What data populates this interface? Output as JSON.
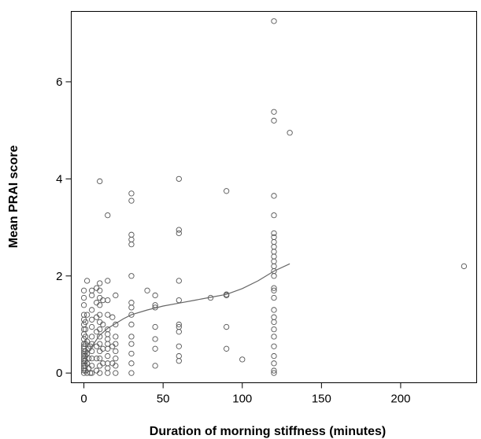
{
  "chart_data": {
    "type": "scatter",
    "title": "",
    "xlabel": "Duration of morning stiffness (minutes)",
    "ylabel": "Mean PRAI score",
    "xlim": [
      -8,
      248
    ],
    "ylim": [
      -0.2,
      7.45
    ],
    "x_ticks": [
      {
        "value": 0,
        "label": "0"
      },
      {
        "value": 50,
        "label": "50"
      },
      {
        "value": 100,
        "label": "100"
      },
      {
        "value": 150,
        "label": "150"
      },
      {
        "value": 200,
        "label": "200"
      }
    ],
    "y_ticks": [
      {
        "value": 0,
        "label": "0"
      },
      {
        "value": 2,
        "label": "2"
      },
      {
        "value": 4,
        "label": "4"
      },
      {
        "value": 6,
        "label": "6"
      }
    ],
    "grid": false,
    "legend": "none",
    "point_color": "#555555",
    "line_color": "#666666",
    "points": [
      [
        0,
        0
      ],
      [
        0,
        0.05
      ],
      [
        0,
        0.1
      ],
      [
        0,
        0.15
      ],
      [
        0,
        0.2
      ],
      [
        0,
        0.25
      ],
      [
        0,
        0.3
      ],
      [
        0,
        0.35
      ],
      [
        0,
        0.4
      ],
      [
        0,
        0.45
      ],
      [
        0,
        0.5
      ],
      [
        0,
        0.55
      ],
      [
        0,
        0.6
      ],
      [
        0,
        0.7
      ],
      [
        0,
        0.8
      ],
      [
        0,
        0.9
      ],
      [
        0,
        1.0
      ],
      [
        0,
        1.1
      ],
      [
        0,
        1.2
      ],
      [
        0,
        1.4
      ],
      [
        0,
        1.55
      ],
      [
        0,
        1.7
      ],
      [
        1,
        0.05
      ],
      [
        1,
        0.15
      ],
      [
        1,
        0.25
      ],
      [
        1,
        0.35
      ],
      [
        1,
        0.45
      ],
      [
        1,
        0.6
      ],
      [
        1,
        0.75
      ],
      [
        1,
        0.9
      ],
      [
        1,
        1.05
      ],
      [
        2,
        0
      ],
      [
        2,
        0.2
      ],
      [
        2,
        0.4
      ],
      [
        2,
        0.65
      ],
      [
        2,
        1.2
      ],
      [
        2,
        1.9
      ],
      [
        3,
        0.1
      ],
      [
        3,
        0.3
      ],
      [
        3,
        0.5
      ],
      [
        4,
        0
      ],
      [
        4,
        0.55
      ],
      [
        5,
        0
      ],
      [
        5,
        0.15
      ],
      [
        5,
        0.3
      ],
      [
        5,
        0.45
      ],
      [
        5,
        0.6
      ],
      [
        5,
        0.75
      ],
      [
        5,
        0.95
      ],
      [
        5,
        1.1
      ],
      [
        5,
        1.3
      ],
      [
        5,
        1.6
      ],
      [
        5,
        1.7
      ],
      [
        8,
        0.05
      ],
      [
        8,
        0.3
      ],
      [
        8,
        0.55
      ],
      [
        8,
        0.85
      ],
      [
        8,
        1.15
      ],
      [
        8,
        1.45
      ],
      [
        8,
        1.75
      ],
      [
        10,
        0
      ],
      [
        10,
        0.15
      ],
      [
        10,
        0.3
      ],
      [
        10,
        0.45
      ],
      [
        10,
        0.6
      ],
      [
        10,
        0.75
      ],
      [
        10,
        0.9
      ],
      [
        10,
        1.05
      ],
      [
        10,
        1.2
      ],
      [
        10,
        1.4
      ],
      [
        10,
        1.55
      ],
      [
        10,
        1.7
      ],
      [
        10,
        1.85
      ],
      [
        10,
        3.95
      ],
      [
        12,
        0.2
      ],
      [
        12,
        0.5
      ],
      [
        12,
        1.0
      ],
      [
        12,
        1.5
      ],
      [
        15,
        0
      ],
      [
        15,
        0.1
      ],
      [
        15,
        0.2
      ],
      [
        15,
        0.35
      ],
      [
        15,
        0.5
      ],
      [
        15,
        0.6
      ],
      [
        15,
        0.7
      ],
      [
        15,
        0.8
      ],
      [
        15,
        0.9
      ],
      [
        15,
        1.2
      ],
      [
        15,
        1.5
      ],
      [
        15,
        1.9
      ],
      [
        15,
        3.25
      ],
      [
        18,
        0.2
      ],
      [
        18,
        0.55
      ],
      [
        18,
        1.15
      ],
      [
        20,
        0
      ],
      [
        20,
        0.15
      ],
      [
        20,
        0.3
      ],
      [
        20,
        0.45
      ],
      [
        20,
        0.6
      ],
      [
        20,
        0.75
      ],
      [
        20,
        1.0
      ],
      [
        20,
        1.6
      ],
      [
        30,
        0
      ],
      [
        30,
        0.2
      ],
      [
        30,
        0.4
      ],
      [
        30,
        0.6
      ],
      [
        30,
        0.75
      ],
      [
        30,
        1.0
      ],
      [
        30,
        1.2
      ],
      [
        30,
        1.35
      ],
      [
        30,
        1.45
      ],
      [
        30,
        2.0
      ],
      [
        30,
        2.65
      ],
      [
        30,
        2.75
      ],
      [
        30,
        2.85
      ],
      [
        30,
        3.55
      ],
      [
        30,
        3.7
      ],
      [
        40,
        1.7
      ],
      [
        45,
        0.15
      ],
      [
        45,
        0.5
      ],
      [
        45,
        0.7
      ],
      [
        45,
        0.95
      ],
      [
        45,
        1.35
      ],
      [
        45,
        1.4
      ],
      [
        45,
        1.6
      ],
      [
        60,
        0.25
      ],
      [
        60,
        0.35
      ],
      [
        60,
        0.55
      ],
      [
        60,
        0.85
      ],
      [
        60,
        0.95
      ],
      [
        60,
        1.0
      ],
      [
        60,
        1.5
      ],
      [
        60,
        1.9
      ],
      [
        60,
        2.88
      ],
      [
        60,
        2.95
      ],
      [
        60,
        4.0
      ],
      [
        80,
        1.55
      ],
      [
        90,
        0.5
      ],
      [
        90,
        0.95
      ],
      [
        90,
        1.6
      ],
      [
        90,
        1.62
      ],
      [
        90,
        3.75
      ],
      [
        100,
        0.28
      ],
      [
        120,
        0
      ],
      [
        120,
        0.05
      ],
      [
        120,
        0.2
      ],
      [
        120,
        0.35
      ],
      [
        120,
        0.55
      ],
      [
        120,
        0.75
      ],
      [
        120,
        0.9
      ],
      [
        120,
        1.05
      ],
      [
        120,
        1.15
      ],
      [
        120,
        1.3
      ],
      [
        120,
        1.55
      ],
      [
        120,
        1.7
      ],
      [
        120,
        1.75
      ],
      [
        120,
        2.0
      ],
      [
        120,
        2.1
      ],
      [
        120,
        2.2
      ],
      [
        120,
        2.3
      ],
      [
        120,
        2.4
      ],
      [
        120,
        2.5
      ],
      [
        120,
        2.6
      ],
      [
        120,
        2.7
      ],
      [
        120,
        2.8
      ],
      [
        120,
        2.88
      ],
      [
        120,
        3.25
      ],
      [
        120,
        3.65
      ],
      [
        120,
        5.2
      ],
      [
        120,
        5.38
      ],
      [
        120,
        7.25
      ],
      [
        130,
        4.95
      ],
      [
        240,
        2.2
      ]
    ],
    "smooth_line": [
      [
        0,
        0.3
      ],
      [
        5,
        0.55
      ],
      [
        10,
        0.78
      ],
      [
        15,
        0.92
      ],
      [
        20,
        1.02
      ],
      [
        25,
        1.12
      ],
      [
        30,
        1.2
      ],
      [
        40,
        1.3
      ],
      [
        50,
        1.38
      ],
      [
        60,
        1.44
      ],
      [
        70,
        1.5
      ],
      [
        80,
        1.56
      ],
      [
        90,
        1.62
      ],
      [
        100,
        1.74
      ],
      [
        110,
        1.9
      ],
      [
        120,
        2.1
      ],
      [
        130,
        2.25
      ]
    ]
  }
}
